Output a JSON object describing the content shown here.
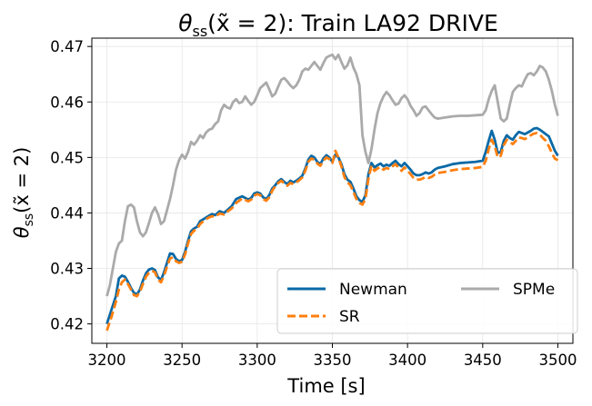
{
  "chart_data": {
    "type": "line",
    "title_parts": {
      "theta": "θ",
      "sub": "ss",
      "arg": "(x̃ = 2): Train LA92 DRIVE"
    },
    "xlabel": "Time [s]",
    "ylabel_parts": {
      "theta": "θ",
      "sub": "ss",
      "arg": "(x̃ = 2)"
    },
    "xlim": [
      3190,
      3510
    ],
    "ylim": [
      0.4165,
      0.4715
    ],
    "xticks": [
      3200,
      3250,
      3300,
      3350,
      3400,
      3450,
      3500
    ],
    "yticks": [
      0.42,
      0.43,
      0.44,
      0.45,
      0.46,
      0.47
    ],
    "xtick_labels": [
      "3200",
      "3250",
      "3300",
      "3350",
      "3400",
      "3450",
      "3500"
    ],
    "ytick_labels": [
      "0.42",
      "0.43",
      "0.44",
      "0.45",
      "0.46",
      "0.47"
    ],
    "grid": true,
    "legend_position": "lower-right",
    "series": [
      {
        "name": "Newman",
        "color": "#0a69a6",
        "dash": "solid",
        "x": [
          3200,
          3203,
          3206,
          3208,
          3210,
          3212,
          3214,
          3216,
          3218,
          3220,
          3222,
          3224,
          3226,
          3228,
          3230,
          3232,
          3234,
          3236,
          3238,
          3240,
          3242,
          3244,
          3246,
          3248,
          3250,
          3252,
          3254,
          3256,
          3258,
          3260,
          3262,
          3265,
          3268,
          3270,
          3272,
          3275,
          3278,
          3280,
          3283,
          3286,
          3290,
          3294,
          3296,
          3298,
          3300,
          3302,
          3304,
          3306,
          3308,
          3310,
          3312,
          3314,
          3316,
          3318,
          3320,
          3322,
          3324,
          3326,
          3328,
          3330,
          3332,
          3334,
          3336,
          3338,
          3340,
          3342,
          3344,
          3346,
          3348,
          3350,
          3352,
          3354,
          3356,
          3358,
          3360,
          3362,
          3364,
          3366,
          3368,
          3370,
          3372,
          3374,
          3376,
          3378,
          3380,
          3382,
          3384,
          3386,
          3388,
          3390,
          3392,
          3394,
          3396,
          3398,
          3400,
          3402,
          3404,
          3406,
          3408,
          3410,
          3412,
          3414,
          3416,
          3418,
          3420,
          3425,
          3430,
          3435,
          3440,
          3445,
          3450,
          3452,
          3454,
          3456,
          3458,
          3460,
          3462,
          3464,
          3466,
          3468,
          3470,
          3472,
          3474,
          3476,
          3478,
          3480,
          3482,
          3484,
          3486,
          3488,
          3490,
          3492,
          3494,
          3496,
          3498,
          3500
        ],
        "y": [
          0.42,
          0.4225,
          0.425,
          0.4282,
          0.4287,
          0.4285,
          0.4276,
          0.4265,
          0.4256,
          0.4253,
          0.4262,
          0.4278,
          0.4291,
          0.4298,
          0.43,
          0.4297,
          0.4284,
          0.4279,
          0.4293,
          0.431,
          0.4327,
          0.4326,
          0.4317,
          0.4313,
          0.4315,
          0.433,
          0.435,
          0.4367,
          0.4372,
          0.4375,
          0.4385,
          0.439,
          0.4395,
          0.4398,
          0.4396,
          0.4403,
          0.44,
          0.4405,
          0.4412,
          0.4425,
          0.443,
          0.4424,
          0.4427,
          0.4435,
          0.4437,
          0.4435,
          0.4428,
          0.4425,
          0.4432,
          0.4444,
          0.445,
          0.4457,
          0.4461,
          0.4456,
          0.4452,
          0.4458,
          0.4455,
          0.4458,
          0.4462,
          0.4467,
          0.448,
          0.4496,
          0.4503,
          0.45,
          0.4492,
          0.4488,
          0.4498,
          0.4504,
          0.45,
          0.4492,
          0.4505,
          0.45,
          0.4488,
          0.447,
          0.446,
          0.4456,
          0.4444,
          0.443,
          0.4423,
          0.442,
          0.4432,
          0.447,
          0.449,
          0.4482,
          0.4486,
          0.4489,
          0.4484,
          0.4487,
          0.4485,
          0.449,
          0.4494,
          0.4488,
          0.4484,
          0.449,
          0.4484,
          0.4478,
          0.4471,
          0.4468,
          0.4468,
          0.447,
          0.4473,
          0.4471,
          0.4473,
          0.4478,
          0.4481,
          0.4484,
          0.4488,
          0.449,
          0.4491,
          0.4492,
          0.4494,
          0.451,
          0.453,
          0.4548,
          0.4532,
          0.4508,
          0.451,
          0.453,
          0.454,
          0.4535,
          0.4532,
          0.454,
          0.4546,
          0.4544,
          0.4542,
          0.4545,
          0.4548,
          0.4552,
          0.4553,
          0.455,
          0.4546,
          0.4542,
          0.4538,
          0.4525,
          0.4512,
          0.4503
        ]
      },
      {
        "name": "SR",
        "color": "#ff7f0e",
        "dash": "dashed",
        "x": [
          3200,
          3203,
          3206,
          3208,
          3210,
          3212,
          3214,
          3216,
          3218,
          3220,
          3222,
          3224,
          3226,
          3228,
          3230,
          3232,
          3234,
          3236,
          3238,
          3240,
          3242,
          3244,
          3246,
          3248,
          3250,
          3252,
          3254,
          3256,
          3258,
          3260,
          3262,
          3265,
          3268,
          3270,
          3272,
          3275,
          3278,
          3280,
          3283,
          3286,
          3290,
          3294,
          3296,
          3298,
          3300,
          3302,
          3304,
          3306,
          3308,
          3310,
          3312,
          3314,
          3316,
          3318,
          3320,
          3322,
          3324,
          3326,
          3328,
          3330,
          3332,
          3334,
          3336,
          3338,
          3340,
          3342,
          3344,
          3346,
          3348,
          3350,
          3352,
          3354,
          3356,
          3358,
          3360,
          3362,
          3364,
          3366,
          3368,
          3370,
          3372,
          3374,
          3376,
          3378,
          3380,
          3382,
          3384,
          3386,
          3388,
          3390,
          3392,
          3394,
          3396,
          3398,
          3400,
          3402,
          3404,
          3406,
          3408,
          3410,
          3412,
          3414,
          3416,
          3418,
          3420,
          3425,
          3430,
          3435,
          3440,
          3445,
          3450,
          3452,
          3454,
          3456,
          3458,
          3460,
          3462,
          3464,
          3466,
          3468,
          3470,
          3472,
          3474,
          3476,
          3478,
          3480,
          3482,
          3484,
          3486,
          3488,
          3490,
          3492,
          3494,
          3496,
          3498,
          3500
        ],
        "y": [
          0.4188,
          0.4212,
          0.424,
          0.4262,
          0.4275,
          0.428,
          0.4272,
          0.4262,
          0.4252,
          0.425,
          0.4258,
          0.4272,
          0.4285,
          0.4292,
          0.4296,
          0.4293,
          0.428,
          0.4275,
          0.4287,
          0.4303,
          0.4318,
          0.432,
          0.4313,
          0.431,
          0.4312,
          0.4325,
          0.4345,
          0.4362,
          0.4368,
          0.4371,
          0.438,
          0.4387,
          0.4392,
          0.4394,
          0.4393,
          0.4399,
          0.4397,
          0.4402,
          0.4408,
          0.4418,
          0.4426,
          0.4421,
          0.4424,
          0.4431,
          0.4434,
          0.4432,
          0.4425,
          0.4422,
          0.4428,
          0.444,
          0.4448,
          0.4454,
          0.4458,
          0.4453,
          0.4449,
          0.4454,
          0.4452,
          0.4455,
          0.4459,
          0.4464,
          0.4476,
          0.4492,
          0.4498,
          0.4496,
          0.4489,
          0.4485,
          0.4494,
          0.45,
          0.4497,
          0.449,
          0.4512,
          0.45,
          0.4484,
          0.4465,
          0.4455,
          0.445,
          0.4438,
          0.4425,
          0.4418,
          0.4415,
          0.4425,
          0.4462,
          0.4485,
          0.4476,
          0.448,
          0.4483,
          0.4478,
          0.4481,
          0.4479,
          0.4484,
          0.4488,
          0.4482,
          0.4476,
          0.4482,
          0.4476,
          0.447,
          0.4463,
          0.446,
          0.446,
          0.4462,
          0.4465,
          0.4463,
          0.4465,
          0.4469,
          0.4472,
          0.4474,
          0.4477,
          0.4479,
          0.448,
          0.4481,
          0.4483,
          0.4494,
          0.4515,
          0.4532,
          0.452,
          0.45,
          0.4503,
          0.4522,
          0.4532,
          0.4528,
          0.4524,
          0.453,
          0.4536,
          0.4535,
          0.4533,
          0.4536,
          0.454,
          0.4543,
          0.4544,
          0.4541,
          0.4535,
          0.453,
          0.452,
          0.4508,
          0.4498,
          0.4495
        ]
      },
      {
        "name": "SPMe",
        "color": "#aaaaaa",
        "dash": "solid",
        "x": [
          3200,
          3202,
          3204,
          3206,
          3208,
          3210,
          3212,
          3214,
          3216,
          3218,
          3220,
          3222,
          3224,
          3226,
          3228,
          3230,
          3232,
          3234,
          3236,
          3238,
          3240,
          3242,
          3244,
          3246,
          3248,
          3250,
          3252,
          3254,
          3256,
          3258,
          3260,
          3262,
          3264,
          3266,
          3268,
          3270,
          3272,
          3274,
          3276,
          3278,
          3280,
          3282,
          3284,
          3286,
          3288,
          3290,
          3292,
          3294,
          3296,
          3298,
          3300,
          3302,
          3304,
          3306,
          3308,
          3310,
          3312,
          3314,
          3316,
          3318,
          3320,
          3322,
          3324,
          3326,
          3328,
          3330,
          3332,
          3334,
          3336,
          3338,
          3340,
          3342,
          3344,
          3346,
          3348,
          3350,
          3352,
          3354,
          3356,
          3358,
          3360,
          3362,
          3364,
          3366,
          3368,
          3370,
          3372,
          3374,
          3376,
          3378,
          3380,
          3382,
          3384,
          3386,
          3388,
          3390,
          3392,
          3394,
          3396,
          3398,
          3400,
          3402,
          3404,
          3406,
          3408,
          3410,
          3412,
          3414,
          3416,
          3418,
          3420,
          3425,
          3430,
          3435,
          3440,
          3445,
          3450,
          3452,
          3454,
          3456,
          3458,
          3460,
          3462,
          3464,
          3466,
          3468,
          3470,
          3472,
          3474,
          3476,
          3478,
          3480,
          3482,
          3484,
          3486,
          3488,
          3490,
          3492,
          3494,
          3496,
          3498,
          3500
        ],
        "y": [
          0.425,
          0.427,
          0.43,
          0.433,
          0.4345,
          0.435,
          0.4385,
          0.4412,
          0.4415,
          0.441,
          0.4385,
          0.4365,
          0.4358,
          0.4365,
          0.4382,
          0.44,
          0.441,
          0.4398,
          0.438,
          0.4385,
          0.4405,
          0.4425,
          0.445,
          0.4478,
          0.4495,
          0.4505,
          0.4498,
          0.451,
          0.4528,
          0.4523,
          0.453,
          0.454,
          0.4535,
          0.4545,
          0.455,
          0.4552,
          0.456,
          0.4565,
          0.4585,
          0.4595,
          0.459,
          0.4588,
          0.46,
          0.4605,
          0.4598,
          0.46,
          0.461,
          0.4602,
          0.4595,
          0.46,
          0.4612,
          0.4625,
          0.463,
          0.4635,
          0.4623,
          0.461,
          0.4615,
          0.4628,
          0.464,
          0.4643,
          0.4637,
          0.463,
          0.4625,
          0.463,
          0.464,
          0.4655,
          0.466,
          0.4658,
          0.4665,
          0.4672,
          0.4665,
          0.4658,
          0.467,
          0.468,
          0.4683,
          0.4685,
          0.4677,
          0.4685,
          0.4672,
          0.466,
          0.4666,
          0.468,
          0.4662,
          0.465,
          0.463,
          0.454,
          0.451,
          0.449,
          0.4515,
          0.455,
          0.458,
          0.4598,
          0.461,
          0.4618,
          0.4612,
          0.4603,
          0.4595,
          0.4597,
          0.4607,
          0.4612,
          0.4605,
          0.4593,
          0.4585,
          0.4575,
          0.458,
          0.459,
          0.4592,
          0.4585,
          0.4578,
          0.4572,
          0.457,
          0.4572,
          0.4574,
          0.4575,
          0.4575,
          0.4576,
          0.4577,
          0.4585,
          0.4605,
          0.462,
          0.463,
          0.46,
          0.457,
          0.4565,
          0.457,
          0.4595,
          0.4618,
          0.4625,
          0.463,
          0.4628,
          0.464,
          0.465,
          0.4652,
          0.4648,
          0.4655,
          0.4665,
          0.4662,
          0.4655,
          0.464,
          0.462,
          0.4595,
          0.4575
        ]
      }
    ]
  }
}
